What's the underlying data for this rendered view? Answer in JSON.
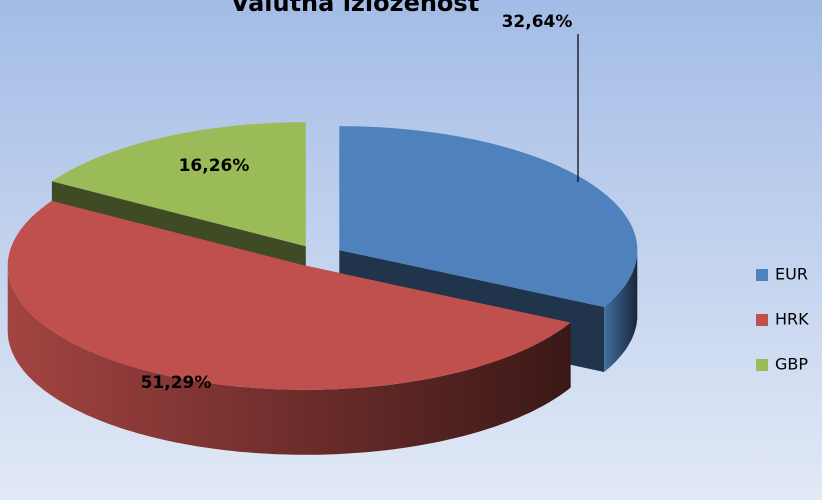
{
  "chart_data": {
    "type": "pie",
    "title": "Valutna izloženost",
    "categories": [
      "EUR",
      "HRK",
      "GBP"
    ],
    "values": [
      32.64,
      51.29,
      16.26
    ],
    "value_labels": [
      "32,64%",
      "51,29%",
      "16,26%"
    ],
    "colors": [
      "#4f81bd",
      "#c0504d",
      "#9bbb59"
    ],
    "legend": "right"
  }
}
